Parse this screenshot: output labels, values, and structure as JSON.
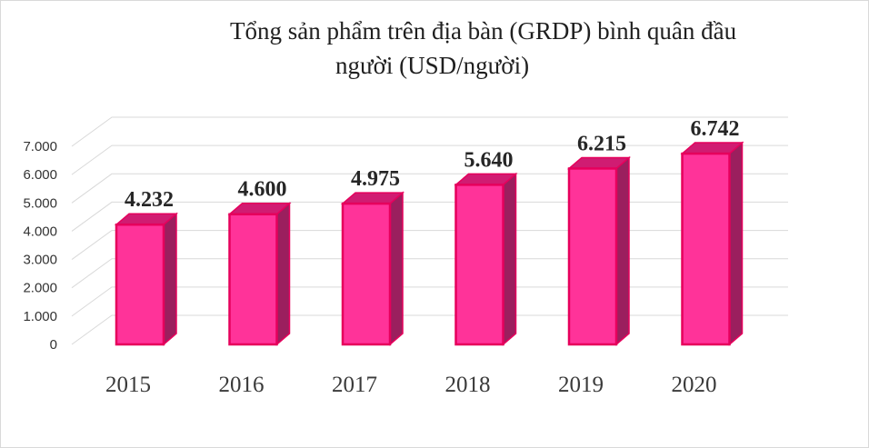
{
  "chart_data": {
    "type": "bar",
    "title": "Tổng sản phẩm trên địa bàn (GRDP) bình quân đầu người (USD/người)",
    "title_lines": [
      "Tổng sản phẩm trên địa bàn (GRDP) bình quân đầu",
      "người (USD/người)"
    ],
    "categories": [
      "2015",
      "2016",
      "2017",
      "2018",
      "2019",
      "2020"
    ],
    "values": [
      4232,
      4600,
      4975,
      5640,
      6215,
      6742
    ],
    "value_labels": [
      "4.232",
      "4.600",
      "4.975",
      "5.640",
      "6.215",
      "6.742"
    ],
    "yticks": [
      0,
      1000,
      2000,
      3000,
      4000,
      5000,
      6000,
      7000
    ],
    "ytick_labels": [
      "0",
      "1.000",
      "2.000",
      "3.000",
      "4.000",
      "5.000",
      "6.000",
      "7.000"
    ],
    "ylim": [
      0,
      7000
    ],
    "grid": true,
    "legend": "none",
    "colors": {
      "bar_front": "#ff3399",
      "bar_edge": "#e6005c",
      "bar_side": "#9b1f5e",
      "bar_top": "#d01c72",
      "grid": "#d9d9d9"
    }
  }
}
